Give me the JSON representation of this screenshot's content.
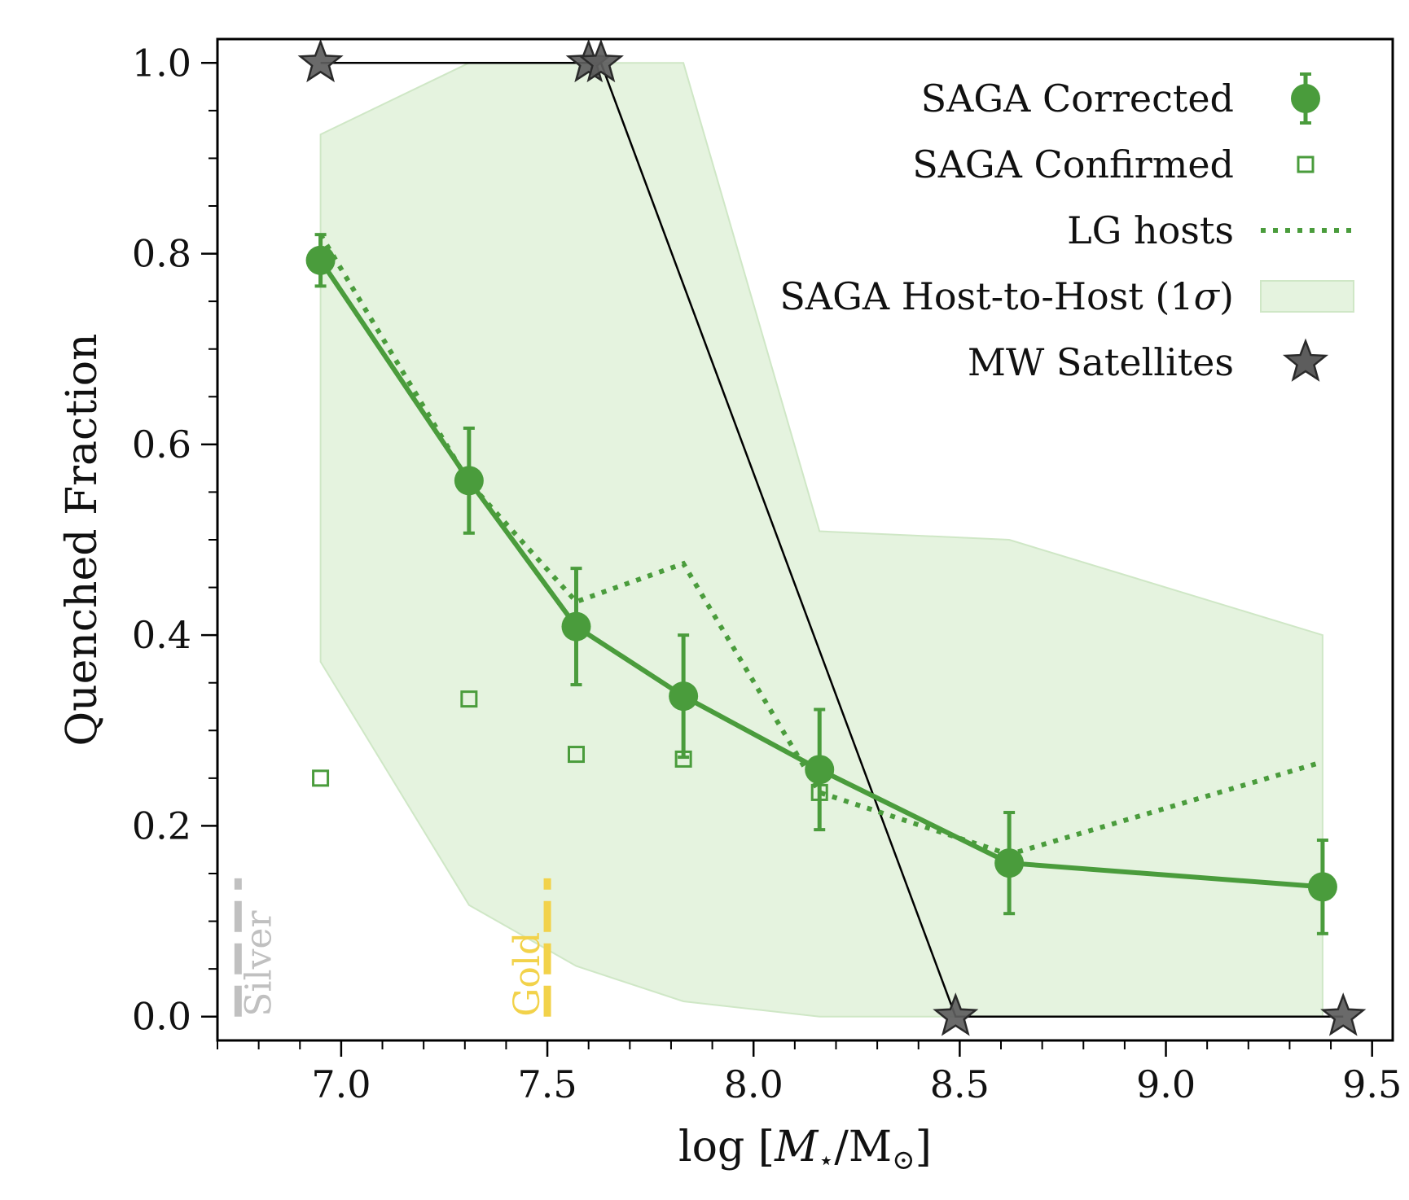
{
  "chart_data": {
    "type": "line",
    "xlabel": "log [M⋆/M⊙]",
    "xlabel_parts": {
      "prefix": "log [",
      "quantity": "M",
      "sub_star": "⋆",
      "slash_unit": "/M",
      "sun": "⊙",
      "suffix": "]"
    },
    "ylabel": "Quenched Fraction",
    "xlim": [
      6.7,
      9.55
    ],
    "ylim": [
      -0.025,
      1.025
    ],
    "xticks": [
      7.0,
      7.5,
      8.0,
      8.5,
      9.0,
      9.5
    ],
    "xtick_labels": [
      "7.0",
      "7.5",
      "8.0",
      "8.5",
      "9.0",
      "9.5"
    ],
    "xminor_step": 0.1,
    "yticks": [
      0.0,
      0.2,
      0.4,
      0.6,
      0.8,
      1.0
    ],
    "ytick_labels": [
      "0.0",
      "0.2",
      "0.4",
      "0.6",
      "0.8",
      "1.0"
    ],
    "yminor_step": 0.05,
    "grid": false,
    "legend_position": "top-right",
    "colors": {
      "saga": "#4a9c3c",
      "band_fill": "#e5f3df",
      "band_edge": "#cfe7c6",
      "star_fill": "#5d5d5d",
      "star_line": "#000000",
      "silver": "#c0c0c0",
      "gold": "#f2d24a"
    },
    "series": [
      {
        "name": "SAGA Corrected",
        "kind": "line-errorbar",
        "x": [
          6.95,
          7.31,
          7.57,
          7.83,
          8.16,
          8.62,
          9.38
        ],
        "y": [
          0.793,
          0.562,
          0.409,
          0.336,
          0.259,
          0.161,
          0.136
        ],
        "yerr": [
          0.027,
          0.055,
          0.061,
          0.064,
          0.063,
          0.053,
          0.049
        ]
      },
      {
        "name": "SAGA Confirmed",
        "kind": "open-square",
        "x": [
          6.95,
          7.31,
          7.57,
          7.83,
          8.16
        ],
        "y": [
          0.25,
          0.333,
          0.275,
          0.27,
          0.235
        ]
      },
      {
        "name": "LG hosts",
        "kind": "dotted-line",
        "x": [
          6.95,
          7.31,
          7.57,
          7.83,
          8.16,
          8.62,
          9.38
        ],
        "y": [
          0.82,
          0.56,
          0.435,
          0.475,
          0.235,
          0.17,
          0.267
        ]
      },
      {
        "name": "SAGA Host-to-Host (1σ)",
        "kind": "band",
        "x": [
          6.95,
          7.31,
          7.57,
          7.83,
          8.16,
          8.62,
          9.38
        ],
        "y_low": [
          0.372,
          0.117,
          0.053,
          0.016,
          0.0,
          0.0,
          0.0
        ],
        "y_high": [
          0.925,
          1.0,
          1.0,
          1.0,
          0.509,
          0.5,
          0.4
        ]
      },
      {
        "name": "MW Satellites",
        "kind": "star-line",
        "x": [
          6.95,
          7.6,
          7.63,
          8.49,
          9.43
        ],
        "y": [
          1.0,
          1.0,
          1.0,
          0.0,
          0.0
        ]
      }
    ],
    "legend": [
      {
        "label": "SAGA Corrected",
        "marker": "circle-errorbar"
      },
      {
        "label": "SAGA Confirmed",
        "marker": "open-square"
      },
      {
        "label": "LG hosts",
        "marker": "dotted-line"
      },
      {
        "label": "SAGA Host-to-Host (1",
        "sigma": "σ",
        "close": ")",
        "marker": "band"
      },
      {
        "label": "MW Satellites",
        "marker": "star"
      }
    ],
    "annotations": [
      {
        "text": "Silver",
        "x": 6.75,
        "y_range": [
          0.0,
          0.145
        ],
        "color_key": "silver"
      },
      {
        "text": "Gold",
        "x": 7.5,
        "y_range": [
          0.0,
          0.145
        ],
        "color_key": "gold"
      }
    ]
  }
}
